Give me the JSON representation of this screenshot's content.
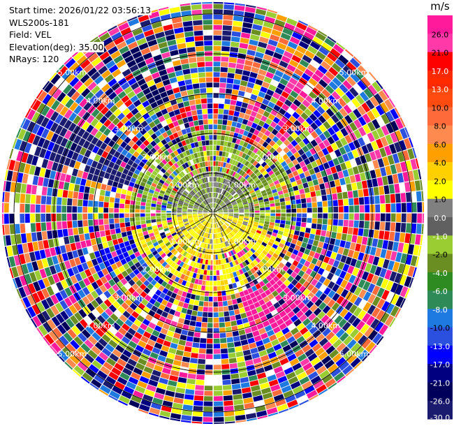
{
  "info": {
    "start_time": "Start time: 2026/01/22 03:56:13",
    "instrument": "WLS200s-181",
    "field": "Field: VEL",
    "elevation": "Elevation(deg): 35.00",
    "nrays": "NRays: 120"
  },
  "chart_data": {
    "type": "heatmap",
    "projection": "polar-ppi",
    "field": "VEL",
    "units": "m/s",
    "n_rays": 120,
    "range_rings_km": [
      1,
      2,
      3,
      4,
      5
    ],
    "ring_label_suffix": "km",
    "max_range_km": 5.3,
    "colorbar": {
      "unit_label": "m/s",
      "ticks": [
        "26.0",
        "21.0",
        "17.0",
        "13.0",
        "10.0",
        "8.0",
        "6.0",
        "4.0",
        "2.0",
        "1.0",
        "0.0",
        "-1.0",
        "-2.0",
        "-4.0",
        "-6.0",
        "-8.0",
        "-10.0",
        "-13.0",
        "-17.0",
        "-21.0",
        "-26.0",
        "-30.0"
      ],
      "colors": [
        "#ff1a9c",
        "#ff3aa8",
        "#ff0000",
        "#ff2a00",
        "#ff4a10",
        "#ff6a3a",
        "#ff8a50",
        "#ffa000",
        "#ffd000",
        "#ffff00",
        "#808080",
        "#606060",
        "#9acd32",
        "#6b8e23",
        "#2e8b22",
        "#2e8b57",
        "#1e7ae0",
        "#2b50e0",
        "#0000ff",
        "#000080",
        "#00005a",
        "#1a1a6e"
      ]
    },
    "regions": [
      {
        "description": "near-zero",
        "range_km": [
          0,
          0.6
        ],
        "colors": [
          "#808080",
          "#606060",
          "#9acd32",
          "#6b8e23"
        ]
      }
    ]
  }
}
